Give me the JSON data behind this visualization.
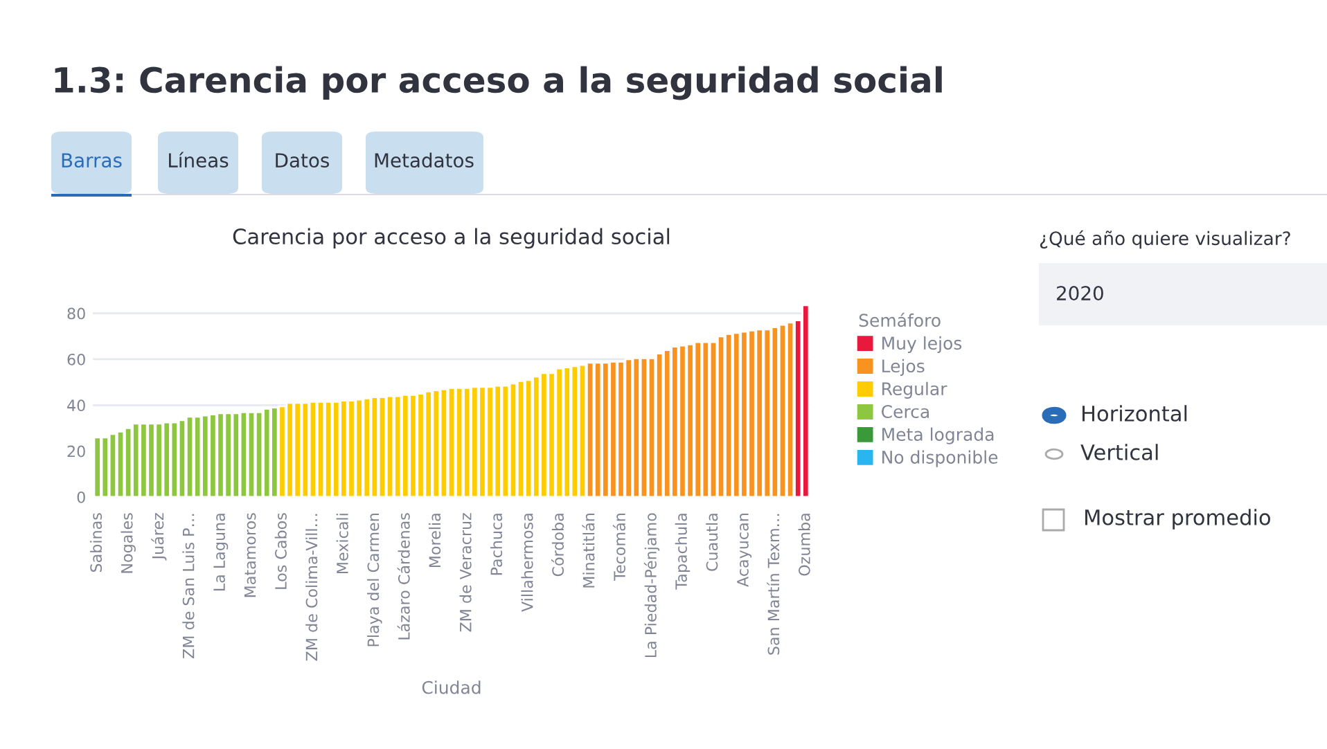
{
  "chart_data": {
    "type": "bar",
    "title": "Carencia por acceso a la seguridad social",
    "xlabel": "Ciudad",
    "legend_title": "Semáforo",
    "legend": "right",
    "grid": "y",
    "ylim": [
      0,
      85
    ],
    "yticks": [
      0,
      20,
      40,
      60,
      80
    ],
    "categories": [
      "Sabinas",
      null,
      null,
      null,
      "Nogales",
      null,
      null,
      null,
      "Juárez",
      null,
      null,
      null,
      "ZM de San Luis P…",
      null,
      null,
      null,
      "La Laguna",
      null,
      null,
      null,
      "Matamoros",
      null,
      null,
      null,
      "Los Cabos",
      null,
      null,
      null,
      "ZM de Colima-Vill…",
      null,
      null,
      null,
      "Mexicali",
      null,
      null,
      null,
      "Playa del Carmen",
      null,
      null,
      null,
      "Lázaro Cárdenas",
      null,
      null,
      null,
      "Morelia",
      null,
      null,
      null,
      "ZM de Veracruz",
      null,
      null,
      null,
      "Pachuca",
      null,
      null,
      null,
      "Villahermosa",
      null,
      null,
      null,
      "Córdoba",
      null,
      null,
      null,
      "Minatitlán",
      null,
      null,
      null,
      "Tecomán",
      null,
      null,
      null,
      "La Piedad-Pénjamo",
      null,
      null,
      null,
      "Tapachula",
      null,
      null,
      null,
      "Cuautla",
      null,
      null,
      null,
      "Acayucan",
      null,
      null,
      null,
      "San Martín Texm…",
      null,
      null,
      null,
      "Ozumba"
    ],
    "series": [
      {
        "name": "Muy lejos",
        "color": "#e8193c",
        "values": [
          null,
          null,
          null,
          null,
          null,
          null,
          null,
          null,
          null,
          null,
          null,
          null,
          null,
          null,
          null,
          null,
          null,
          null,
          null,
          null,
          null,
          null,
          null,
          null,
          null,
          null,
          null,
          null,
          null,
          null,
          null,
          null,
          null,
          null,
          null,
          null,
          null,
          null,
          null,
          null,
          null,
          null,
          null,
          null,
          null,
          null,
          null,
          null,
          null,
          null,
          null,
          null,
          null,
          null,
          null,
          null,
          null,
          null,
          null,
          null,
          null,
          null,
          null,
          null,
          null,
          null,
          null,
          null,
          null,
          null,
          null,
          null,
          null,
          null,
          null,
          null,
          null,
          null,
          null,
          null,
          null,
          null,
          null,
          null,
          null,
          null,
          null,
          null,
          null,
          null,
          null,
          77,
          83.5
        ]
      },
      {
        "name": "Lejos",
        "color": "#f7931e",
        "values": [
          null,
          null,
          null,
          null,
          null,
          null,
          null,
          null,
          null,
          null,
          null,
          null,
          null,
          null,
          null,
          null,
          null,
          null,
          null,
          null,
          null,
          null,
          null,
          null,
          null,
          null,
          null,
          null,
          null,
          null,
          null,
          null,
          null,
          null,
          null,
          null,
          null,
          null,
          null,
          null,
          null,
          null,
          null,
          null,
          null,
          null,
          null,
          null,
          null,
          null,
          null,
          null,
          null,
          null,
          null,
          null,
          null,
          null,
          null,
          null,
          null,
          null,
          null,
          null,
          58.5,
          58.5,
          58.5,
          59,
          59,
          60,
          60.5,
          60.5,
          60.5,
          62.5,
          64,
          65.5,
          66,
          66.5,
          67.5,
          67.5,
          67.5,
          70,
          71,
          71.5,
          72,
          72.5,
          73,
          73,
          74,
          75,
          76,
          null,
          null
        ]
      },
      {
        "name": "Regular",
        "color": "#ffcc00",
        "values": [
          null,
          null,
          null,
          null,
          null,
          null,
          null,
          null,
          null,
          null,
          null,
          null,
          null,
          null,
          null,
          null,
          null,
          null,
          null,
          null,
          null,
          null,
          null,
          null,
          39.5,
          41,
          41,
          41,
          41.5,
          41.5,
          41.5,
          41.5,
          42,
          42,
          42.5,
          43,
          43.5,
          43.5,
          44,
          44,
          44.5,
          44.5,
          45,
          46,
          46.5,
          47,
          47.5,
          47.5,
          47.5,
          48,
          48,
          48,
          48.5,
          48.5,
          49.5,
          50.5,
          51,
          52.5,
          54,
          54,
          56,
          56.5,
          57,
          57.5,
          null,
          null,
          null,
          null,
          null,
          null,
          null,
          null,
          null,
          null,
          null,
          null,
          null,
          null,
          null,
          null,
          null,
          null,
          null,
          null,
          null,
          null,
          null,
          null,
          null,
          null,
          null,
          null,
          null
        ]
      },
      {
        "name": "Cerca",
        "color": "#8dc63f",
        "values": [
          26,
          26,
          27.5,
          28.5,
          30,
          32,
          32,
          32,
          32,
          32.5,
          32.5,
          33.5,
          35,
          35,
          35.5,
          36,
          36.5,
          36.5,
          36.5,
          37,
          37,
          37,
          38.5,
          39,
          null,
          null,
          null,
          null,
          null,
          null,
          null,
          null,
          null,
          null,
          null,
          null,
          null,
          null,
          null,
          null,
          null,
          null,
          null,
          null,
          null,
          null,
          null,
          null,
          null,
          null,
          null,
          null,
          null,
          null,
          null,
          null,
          null,
          null,
          null,
          null,
          null,
          null,
          null,
          null,
          null,
          null,
          null,
          null,
          null,
          null,
          null,
          null,
          null,
          null,
          null,
          null,
          null,
          null,
          null,
          null,
          null,
          null,
          null,
          null,
          null,
          null,
          null,
          null,
          null,
          null,
          null,
          null,
          null
        ]
      },
      {
        "name": "Meta lograda",
        "color": "#3a9a3a",
        "values": [
          null,
          null,
          null,
          null,
          null,
          null,
          null,
          null,
          null,
          null,
          null,
          null,
          null,
          null,
          null,
          null,
          null,
          null,
          null,
          null,
          null,
          null,
          null,
          null,
          null,
          null,
          null,
          null,
          null,
          null,
          null,
          null,
          null,
          null,
          null,
          null,
          null,
          null,
          null,
          null,
          null,
          null,
          null,
          null,
          null,
          null,
          null,
          null,
          null,
          null,
          null,
          null,
          null,
          null,
          null,
          null,
          null,
          null,
          null,
          null,
          null,
          null,
          null,
          null,
          null,
          null,
          null,
          null,
          null,
          null,
          null,
          null,
          null,
          null,
          null,
          null,
          null,
          null,
          null,
          null,
          null,
          null,
          null,
          null,
          null,
          null,
          null,
          null,
          null,
          null,
          null,
          null,
          null
        ]
      },
      {
        "name": "No disponible",
        "color": "#29b5f0",
        "values": [
          null,
          null,
          null,
          null,
          null,
          null,
          null,
          null,
          null,
          null,
          null,
          null,
          null,
          null,
          null,
          null,
          null,
          null,
          null,
          null,
          null,
          null,
          null,
          null,
          null,
          null,
          null,
          null,
          null,
          null,
          null,
          null,
          null,
          null,
          null,
          null,
          null,
          null,
          null,
          null,
          null,
          null,
          null,
          null,
          null,
          null,
          null,
          null,
          null,
          null,
          null,
          null,
          null,
          null,
          null,
          null,
          null,
          null,
          null,
          null,
          null,
          null,
          null,
          null,
          null,
          null,
          null,
          null,
          null,
          null,
          null,
          null,
          null,
          null,
          null,
          null,
          null,
          null,
          null,
          null,
          null,
          null,
          null,
          null,
          null,
          null,
          null,
          null,
          null,
          null,
          null,
          null,
          null
        ]
      }
    ],
    "annotations": [
      "1.3: Carencia por acceso a la seguridad social",
      "Barras",
      "Líneas",
      "Datos",
      "Metadatos",
      "¿Qué año quiere visualizar?",
      "2020",
      "Horizontal",
      "Vertical",
      "Mostrar promedio"
    ]
  }
}
